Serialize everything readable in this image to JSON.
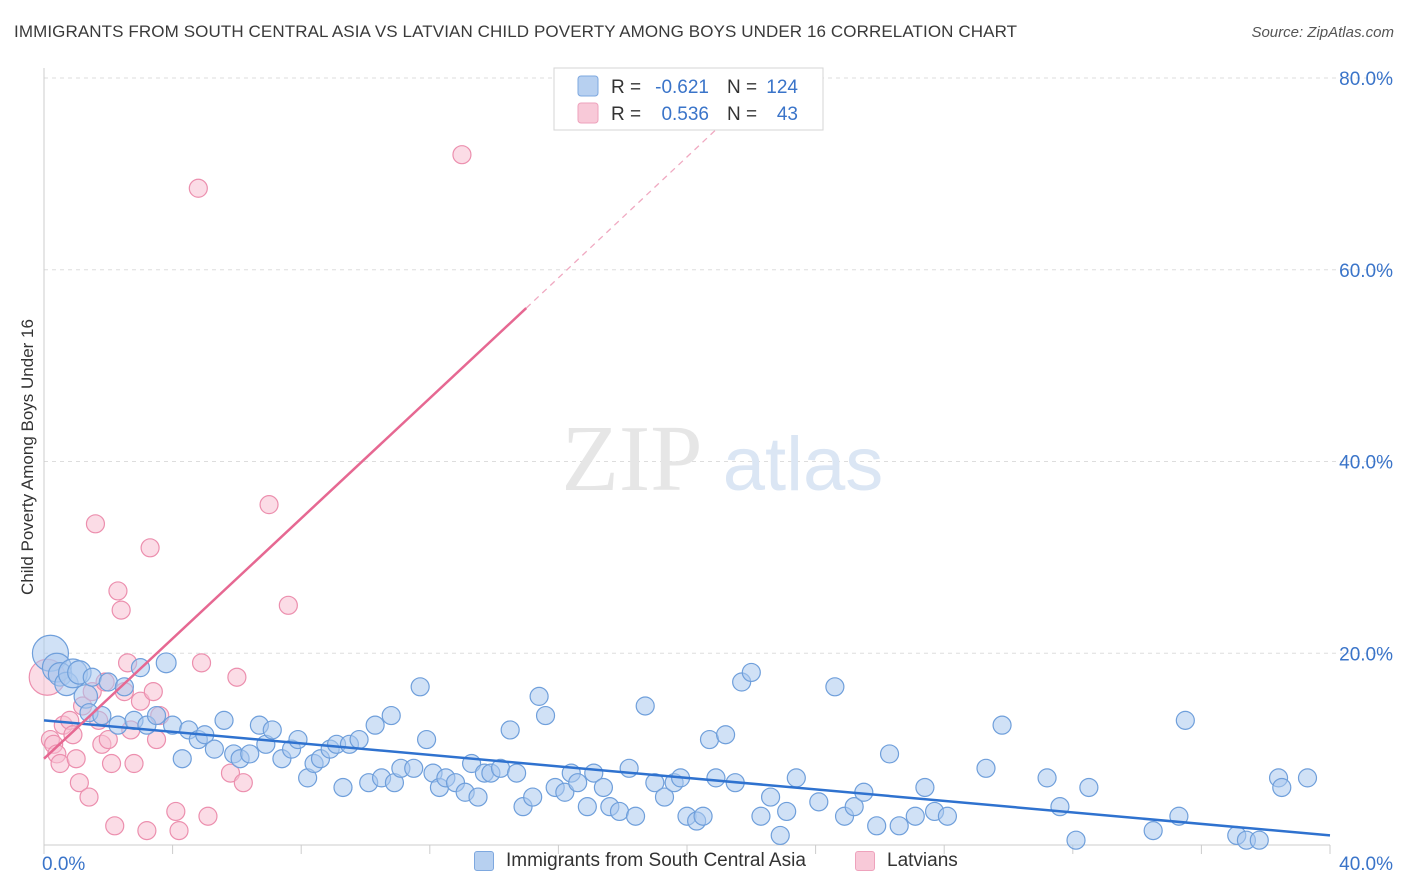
{
  "header": {
    "title": "IMMIGRANTS FROM SOUTH CENTRAL ASIA VS LATVIAN CHILD POVERTY AMONG BOYS UNDER 16 CORRELATION CHART",
    "source": "Source: ZipAtlas.com"
  },
  "watermark": {
    "zip": "ZIP",
    "atlas": "atlas"
  },
  "colors": {
    "blue_fill": "#a9c8ee",
    "blue_stroke": "#6f9fdb",
    "blue_line": "#2f72cf",
    "pink_fill": "#f7c0d2",
    "pink_stroke": "#ec8fae",
    "pink_line": "#e66892",
    "axis_label": "#3a74c9",
    "grid": "#dddddd"
  },
  "legend": {
    "rows": [
      {
        "r_label": "R =",
        "r_value": "-0.621",
        "n_label": "N =",
        "n_value": "124"
      },
      {
        "r_label": "R =",
        "r_value": "0.536",
        "n_label": "N =",
        "n_value": "43"
      }
    ]
  },
  "bottom_legend": {
    "items": [
      {
        "label": "Immigrants from South Central Asia"
      },
      {
        "label": "Latvians"
      }
    ]
  },
  "chart_data": {
    "type": "scatter",
    "title": "IMMIGRANTS FROM SOUTH CENTRAL ASIA VS LATVIAN CHILD POVERTY AMONG BOYS UNDER 16 CORRELATION CHART",
    "xlabel": "",
    "ylabel": "Child Poverty Among Boys Under 16",
    "xlim": [
      0,
      40
    ],
    "ylim": [
      0,
      80
    ],
    "x_tick_labels": [
      {
        "value": 0,
        "label": "0.0%"
      },
      {
        "value": 40,
        "label": "40.0%"
      }
    ],
    "y_tick_labels": [
      {
        "value": 20,
        "label": "20.0%"
      },
      {
        "value": 40,
        "label": "40.0%"
      },
      {
        "value": 60,
        "label": "60.0%"
      },
      {
        "value": 80,
        "label": "80.0%"
      }
    ],
    "series": [
      {
        "name": "Immigrants from South Central Asia",
        "color": "blue",
        "R": -0.621,
        "N": 124,
        "trend": {
          "x0": 0,
          "y0": 13.0,
          "x1": 40,
          "y1": 1.0
        },
        "points": [
          [
            0.2,
            20.0,
            2
          ],
          [
            0.4,
            18.5,
            1.6
          ],
          [
            0.5,
            17.8,
            1.3
          ],
          [
            0.7,
            16.8,
            1.3
          ],
          [
            0.9,
            17.9,
            1.6
          ],
          [
            1.1,
            18.0,
            1.3
          ],
          [
            1.3,
            15.5,
            1.3
          ],
          [
            1.4,
            13.8,
            1
          ],
          [
            1.5,
            17.5,
            1
          ],
          [
            1.8,
            13.5,
            1
          ],
          [
            2.0,
            17.0,
            1
          ],
          [
            2.3,
            12.5,
            1
          ],
          [
            2.5,
            16.5,
            1
          ],
          [
            2.8,
            13.0,
            1
          ],
          [
            3.0,
            18.5,
            1
          ],
          [
            3.2,
            12.5,
            1
          ],
          [
            3.5,
            13.5,
            1
          ],
          [
            3.8,
            19.0,
            1.1
          ],
          [
            4.0,
            12.5,
            1
          ],
          [
            4.3,
            9.0,
            1
          ],
          [
            4.5,
            12.0,
            1
          ],
          [
            4.8,
            11.0,
            1
          ],
          [
            5.0,
            11.5,
            1
          ],
          [
            5.3,
            10.0,
            1
          ],
          [
            5.6,
            13.0,
            1
          ],
          [
            5.9,
            9.5,
            1
          ],
          [
            6.1,
            9.0,
            1
          ],
          [
            6.4,
            9.5,
            1
          ],
          [
            6.7,
            12.5,
            1
          ],
          [
            6.9,
            10.5,
            1
          ],
          [
            7.1,
            12.0,
            1
          ],
          [
            7.4,
            9.0,
            1
          ],
          [
            7.7,
            10.0,
            1
          ],
          [
            7.9,
            11.0,
            1
          ],
          [
            8.2,
            7.0,
            1
          ],
          [
            8.4,
            8.5,
            1
          ],
          [
            8.6,
            9.0,
            1
          ],
          [
            8.9,
            10.0,
            1
          ],
          [
            9.1,
            10.5,
            1
          ],
          [
            9.3,
            6.0,
            1
          ],
          [
            9.5,
            10.5,
            1
          ],
          [
            9.8,
            11.0,
            1
          ],
          [
            10.1,
            6.5,
            1
          ],
          [
            10.3,
            12.5,
            1
          ],
          [
            10.5,
            7.0,
            1
          ],
          [
            10.8,
            13.5,
            1
          ],
          [
            10.9,
            6.5,
            1
          ],
          [
            11.1,
            8.0,
            1
          ],
          [
            11.5,
            8.0,
            1
          ],
          [
            11.7,
            16.5,
            1
          ],
          [
            11.9,
            11.0,
            1
          ],
          [
            12.1,
            7.5,
            1
          ],
          [
            12.3,
            6.0,
            1
          ],
          [
            12.5,
            7.0,
            1
          ],
          [
            12.8,
            6.5,
            1
          ],
          [
            13.1,
            5.5,
            1
          ],
          [
            13.3,
            8.5,
            1
          ],
          [
            13.5,
            5.0,
            1
          ],
          [
            13.7,
            7.5,
            1
          ],
          [
            13.9,
            7.5,
            1
          ],
          [
            14.2,
            8.0,
            1
          ],
          [
            14.5,
            12.0,
            1
          ],
          [
            14.7,
            7.5,
            1
          ],
          [
            14.9,
            4.0,
            1
          ],
          [
            15.2,
            5.0,
            1
          ],
          [
            15.4,
            15.5,
            1
          ],
          [
            15.6,
            13.5,
            1
          ],
          [
            15.9,
            6.0,
            1
          ],
          [
            16.2,
            5.5,
            1
          ],
          [
            16.4,
            7.5,
            1
          ],
          [
            16.6,
            6.5,
            1
          ],
          [
            16.9,
            4.0,
            1
          ],
          [
            17.1,
            7.5,
            1
          ],
          [
            17.4,
            6.0,
            1
          ],
          [
            17.6,
            4.0,
            1
          ],
          [
            17.9,
            3.5,
            1
          ],
          [
            18.2,
            8.0,
            1
          ],
          [
            18.4,
            3.0,
            1
          ],
          [
            18.7,
            14.5,
            1
          ],
          [
            19.0,
            6.5,
            1
          ],
          [
            19.3,
            5.0,
            1
          ],
          [
            19.6,
            6.5,
            1
          ],
          [
            19.8,
            7.0,
            1
          ],
          [
            20.0,
            3.0,
            1
          ],
          [
            20.3,
            2.5,
            1
          ],
          [
            20.5,
            3.0,
            1
          ],
          [
            20.7,
            11.0,
            1
          ],
          [
            20.9,
            7.0,
            1
          ],
          [
            21.2,
            11.5,
            1
          ],
          [
            21.5,
            6.5,
            1
          ],
          [
            21.7,
            17.0,
            1
          ],
          [
            22.0,
            18.0,
            1
          ],
          [
            22.3,
            3.0,
            1
          ],
          [
            22.6,
            5.0,
            1
          ],
          [
            22.9,
            1.0,
            1
          ],
          [
            23.1,
            3.5,
            1
          ],
          [
            23.4,
            7.0,
            1
          ],
          [
            24.1,
            4.5,
            1
          ],
          [
            24.6,
            16.5,
            1
          ],
          [
            24.9,
            3.0,
            1
          ],
          [
            25.2,
            4.0,
            1
          ],
          [
            25.5,
            5.5,
            1
          ],
          [
            25.9,
            2.0,
            1
          ],
          [
            26.3,
            9.5,
            1
          ],
          [
            26.6,
            2.0,
            1
          ],
          [
            27.1,
            3.0,
            1
          ],
          [
            27.4,
            6.0,
            1
          ],
          [
            27.7,
            3.5,
            1
          ],
          [
            28.1,
            3.0,
            1
          ],
          [
            29.3,
            8.0,
            1
          ],
          [
            29.8,
            12.5,
            1
          ],
          [
            31.2,
            7.0,
            1
          ],
          [
            31.6,
            4.0,
            1
          ],
          [
            32.1,
            0.5,
            1
          ],
          [
            32.5,
            6.0,
            1
          ],
          [
            34.5,
            1.5,
            1
          ],
          [
            35.3,
            3.0,
            1
          ],
          [
            35.5,
            13.0,
            1
          ],
          [
            37.1,
            1.0,
            1
          ],
          [
            37.4,
            0.5,
            1
          ],
          [
            37.8,
            0.5,
            1
          ],
          [
            38.4,
            7.0,
            1
          ],
          [
            38.5,
            6.0,
            1
          ],
          [
            39.3,
            7.0,
            1
          ]
        ]
      },
      {
        "name": "Latvians",
        "color": "pink",
        "R": 0.536,
        "N": 43,
        "trend": {
          "x0": 0,
          "y0": 9.0,
          "x1": 15,
          "y1": 56.0
        },
        "trend_dashed": {
          "x0": 15,
          "y0": 56.0,
          "x1": 21.5,
          "y1": 76.5
        },
        "points": [
          [
            0.1,
            17.5,
            2
          ],
          [
            0.2,
            11.0,
            1
          ],
          [
            0.3,
            10.5,
            1
          ],
          [
            0.4,
            9.5,
            1
          ],
          [
            0.5,
            8.5,
            1
          ],
          [
            0.6,
            12.5,
            1
          ],
          [
            0.8,
            13.0,
            1
          ],
          [
            0.9,
            11.5,
            1
          ],
          [
            1.0,
            9.0,
            1
          ],
          [
            1.1,
            6.5,
            1
          ],
          [
            1.2,
            14.5,
            1
          ],
          [
            1.4,
            5.0,
            1
          ],
          [
            1.5,
            16.0,
            1
          ],
          [
            1.6,
            33.5,
            1
          ],
          [
            1.7,
            13.0,
            1
          ],
          [
            1.8,
            10.5,
            1
          ],
          [
            1.9,
            17.0,
            1
          ],
          [
            2.0,
            11.0,
            1
          ],
          [
            2.1,
            8.5,
            1
          ],
          [
            2.2,
            2.0,
            1
          ],
          [
            2.3,
            26.5,
            1
          ],
          [
            2.4,
            24.5,
            1
          ],
          [
            2.5,
            16.0,
            1
          ],
          [
            2.6,
            19.0,
            1
          ],
          [
            2.7,
            12.0,
            1
          ],
          [
            2.8,
            8.5,
            1
          ],
          [
            3.0,
            15.0,
            1
          ],
          [
            3.2,
            1.5,
            1
          ],
          [
            3.3,
            31.0,
            1
          ],
          [
            3.4,
            16.0,
            1
          ],
          [
            3.5,
            11.0,
            1
          ],
          [
            3.6,
            13.5,
            1
          ],
          [
            4.1,
            3.5,
            1
          ],
          [
            4.2,
            1.5,
            1
          ],
          [
            4.8,
            68.5,
            1
          ],
          [
            4.9,
            19.0,
            1
          ],
          [
            5.1,
            3.0,
            1
          ],
          [
            5.8,
            7.5,
            1
          ],
          [
            6.0,
            17.5,
            1
          ],
          [
            6.2,
            6.5,
            1
          ],
          [
            7.0,
            35.5,
            1
          ],
          [
            7.6,
            25.0,
            1
          ],
          [
            13.0,
            72.0,
            1
          ]
        ]
      }
    ]
  }
}
